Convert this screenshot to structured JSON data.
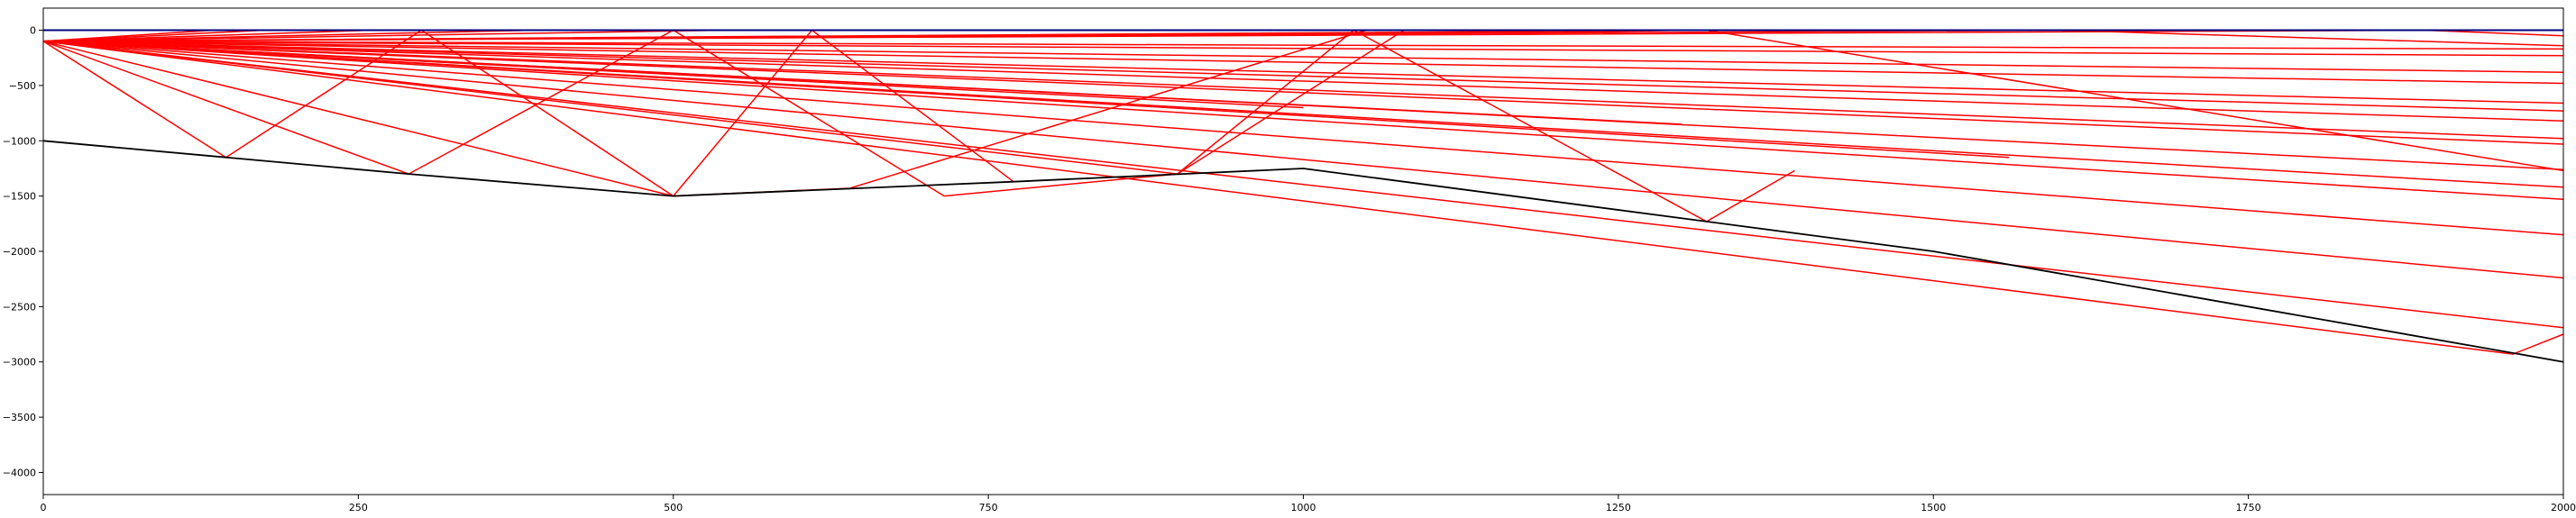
{
  "chart_data": {
    "type": "line",
    "title": "",
    "xlabel": "",
    "ylabel": "",
    "xlim": [
      0,
      2000
    ],
    "ylim": [
      -4200,
      200
    ],
    "x_ticks": [
      0,
      250,
      500,
      750,
      1000,
      1250,
      1500,
      1750,
      2000
    ],
    "y_ticks": [
      0,
      -500,
      -1000,
      -1500,
      -2000,
      -2500,
      -3000,
      -3500,
      -4000
    ],
    "x_tick_labels": [
      "0",
      "250",
      "500",
      "750",
      "1000",
      "1250",
      "1500",
      "1750",
      "2000"
    ],
    "y_tick_labels": [
      "0",
      "−500",
      "−1000",
      "−1500",
      "−2000",
      "−2500",
      "−3000",
      "−3500",
      "−4000"
    ],
    "grid": false,
    "legend": "none",
    "colors": {
      "surface": "#000080",
      "seabed": "#000000",
      "rays": "#ff0000"
    },
    "series": [
      {
        "role": "surface",
        "x": [
          0,
          2000
        ],
        "y": [
          0,
          0
        ]
      },
      {
        "role": "seabed",
        "x": [
          0,
          145,
          290,
          500,
          770,
          1000,
          1320,
          1500,
          2000
        ],
        "y": [
          -1000,
          -1150,
          -1300,
          -1500,
          -1370,
          -1250,
          -1730,
          -2000,
          -3000
        ]
      },
      {
        "role": "ray",
        "x": [
          0,
          145,
          300,
          500,
          610,
          770
        ],
        "y": [
          -100,
          -1150,
          0,
          -1500,
          0,
          -1370
        ]
      },
      {
        "role": "ray",
        "x": [
          0,
          290,
          500,
          715,
          900,
          1040,
          1320,
          1390
        ],
        "y": [
          -100,
          -1300,
          0,
          -1500,
          -1300,
          0,
          -1730,
          -1270
        ]
      },
      {
        "role": "ray",
        "x": [
          0,
          500,
          640,
          1050
        ],
        "y": [
          -100,
          -1500,
          -1430,
          0
        ]
      },
      {
        "role": "ray",
        "x": [
          0,
          900,
          1080,
          1250
        ],
        "y": [
          -100,
          -1300,
          0,
          0
        ]
      },
      {
        "role": "ray",
        "x": [
          0,
          1560
        ],
        "y": [
          -100,
          -1150
        ]
      },
      {
        "role": "ray",
        "x": [
          0,
          1300
        ],
        "y": [
          -100,
          -850
        ]
      },
      {
        "role": "ray",
        "x": [
          0,
          1000
        ],
        "y": [
          -100,
          -700
        ]
      },
      {
        "role": "ray",
        "x": [
          0,
          2000
        ],
        "y": [
          -100,
          -1850
        ]
      },
      {
        "role": "ray",
        "x": [
          0,
          1960,
          2000
        ],
        "y": [
          -100,
          -2930,
          -2750
        ]
      },
      {
        "role": "ray",
        "x": [
          0,
          2000
        ],
        "y": [
          -100,
          -2690
        ]
      },
      {
        "role": "ray",
        "x": [
          0,
          2000
        ],
        "y": [
          -100,
          -2240
        ]
      },
      {
        "role": "ray",
        "x": [
          0,
          2000
        ],
        "y": [
          -100,
          -1530
        ]
      },
      {
        "role": "ray",
        "x": [
          0,
          2000
        ],
        "y": [
          -100,
          -1420
        ]
      },
      {
        "role": "ray",
        "x": [
          0,
          2000
        ],
        "y": [
          -100,
          -1260
        ]
      },
      {
        "role": "ray",
        "x": [
          0,
          2000
        ],
        "y": [
          -100,
          -1030
        ]
      },
      {
        "role": "ray",
        "x": [
          0,
          2000
        ],
        "y": [
          -100,
          -980
        ]
      },
      {
        "role": "ray",
        "x": [
          0,
          2000
        ],
        "y": [
          -100,
          -820
        ]
      },
      {
        "role": "ray",
        "x": [
          0,
          2000
        ],
        "y": [
          -100,
          -730
        ]
      },
      {
        "role": "ray",
        "x": [
          0,
          2000
        ],
        "y": [
          -100,
          -660
        ]
      },
      {
        "role": "ray",
        "x": [
          0,
          2000
        ],
        "y": [
          -100,
          -480
        ]
      },
      {
        "role": "ray",
        "x": [
          0,
          2000
        ],
        "y": [
          -100,
          -380
        ]
      },
      {
        "role": "ray",
        "x": [
          0,
          2000
        ],
        "y": [
          -100,
          -230
        ]
      },
      {
        "role": "ray",
        "x": [
          0,
          2000
        ],
        "y": [
          -100,
          -170
        ]
      },
      {
        "role": "ray",
        "x": [
          0,
          1320,
          2000
        ],
        "y": [
          -100,
          0,
          -1270
        ]
      },
      {
        "role": "ray",
        "x": [
          0,
          1600,
          2000
        ],
        "y": [
          -100,
          0,
          -140
        ]
      },
      {
        "role": "ray",
        "x": [
          0,
          1890,
          2000
        ],
        "y": [
          -100,
          0,
          -50
        ]
      },
      {
        "role": "ray",
        "x": [
          0,
          1200,
          1300
        ],
        "y": [
          -100,
          -20,
          0
        ]
      },
      {
        "role": "ray",
        "x": [
          0,
          175
        ],
        "y": [
          -100,
          0
        ]
      },
      {
        "role": "ray",
        "x": [
          0,
          135
        ],
        "y": [
          -100,
          0
        ]
      },
      {
        "role": "ray",
        "x": [
          0,
          260
        ],
        "y": [
          -100,
          0
        ]
      },
      {
        "role": "ray",
        "x": [
          0,
          390
        ],
        "y": [
          -100,
          0
        ]
      },
      {
        "role": "ray",
        "x": [
          0,
          540
        ],
        "y": [
          -100,
          0
        ]
      }
    ]
  }
}
